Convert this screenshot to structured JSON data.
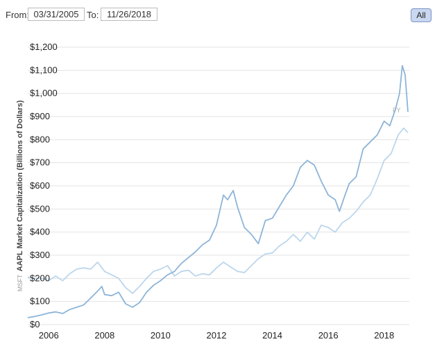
{
  "range_selector": {
    "from_label": "From:",
    "from_value": "03/31/2005",
    "to_label": "To:",
    "to_value": "11/26/2018",
    "all_button_label": "All"
  },
  "series_colors": {
    "aapl": "#8db4d8",
    "msft": "#bcd6ec"
  },
  "chart_data": {
    "type": "line",
    "ylabel": "AAPL Market Capitalization (Billions of Dollars)",
    "secondary_ylabel": "MSFT",
    "watermark": "FY",
    "xlim": [
      2005.25,
      2018.9
    ],
    "ylim": [
      0,
      1200
    ],
    "x_ticks": [
      2006,
      2008,
      2010,
      2012,
      2014,
      2016,
      2018
    ],
    "x_tick_labels": [
      "2006",
      "2008",
      "2010",
      "2012",
      "2014",
      "2016",
      "2018"
    ],
    "y_ticks": [
      0,
      100,
      200,
      300,
      400,
      500,
      600,
      700,
      800,
      900,
      1000,
      1100,
      1200
    ],
    "y_tick_labels": [
      "$0",
      "$100",
      "$200",
      "$300",
      "$400",
      "$500",
      "$600",
      "$700",
      "$800",
      "$900",
      "$1,000",
      "$1,100",
      "$1,200"
    ],
    "grid": true,
    "series": [
      {
        "points": [
          [
            2005.25,
            30
          ],
          [
            2005.5,
            35
          ],
          [
            2005.75,
            42
          ],
          [
            2006.0,
            50
          ],
          [
            2006.25,
            55
          ],
          [
            2006.5,
            48
          ],
          [
            2006.75,
            65
          ],
          [
            2007.0,
            75
          ],
          [
            2007.25,
            85
          ],
          [
            2007.5,
            115
          ],
          [
            2007.75,
            145
          ],
          [
            2007.9,
            165
          ],
          [
            2008.0,
            130
          ],
          [
            2008.25,
            125
          ],
          [
            2008.5,
            140
          ],
          [
            2008.75,
            90
          ],
          [
            2009.0,
            75
          ],
          [
            2009.25,
            95
          ],
          [
            2009.5,
            140
          ],
          [
            2009.75,
            170
          ],
          [
            2010.0,
            190
          ],
          [
            2010.25,
            215
          ],
          [
            2010.5,
            230
          ],
          [
            2010.75,
            265
          ],
          [
            2011.0,
            290
          ],
          [
            2011.25,
            315
          ],
          [
            2011.5,
            345
          ],
          [
            2011.75,
            365
          ],
          [
            2012.0,
            430
          ],
          [
            2012.25,
            560
          ],
          [
            2012.4,
            540
          ],
          [
            2012.6,
            580
          ],
          [
            2012.75,
            510
          ],
          [
            2013.0,
            420
          ],
          [
            2013.25,
            390
          ],
          [
            2013.5,
            350
          ],
          [
            2013.75,
            450
          ],
          [
            2014.0,
            460
          ],
          [
            2014.25,
            510
          ],
          [
            2014.5,
            560
          ],
          [
            2014.75,
            600
          ],
          [
            2015.0,
            680
          ],
          [
            2015.25,
            710
          ],
          [
            2015.5,
            690
          ],
          [
            2015.75,
            620
          ],
          [
            2016.0,
            560
          ],
          [
            2016.25,
            540
          ],
          [
            2016.4,
            490
          ],
          [
            2016.6,
            560
          ],
          [
            2016.75,
            610
          ],
          [
            2017.0,
            640
          ],
          [
            2017.25,
            760
          ],
          [
            2017.5,
            790
          ],
          [
            2017.75,
            820
          ],
          [
            2018.0,
            880
          ],
          [
            2018.2,
            860
          ],
          [
            2018.4,
            930
          ],
          [
            2018.55,
            1000
          ],
          [
            2018.65,
            1120
          ],
          [
            2018.75,
            1080
          ],
          [
            2018.85,
            920
          ]
        ]
      },
      {
        "points": [
          [
            2005.25,
            205
          ],
          [
            2005.5,
            200
          ],
          [
            2005.75,
            200
          ],
          [
            2006.0,
            190
          ],
          [
            2006.25,
            210
          ],
          [
            2006.5,
            190
          ],
          [
            2006.75,
            220
          ],
          [
            2007.0,
            240
          ],
          [
            2007.25,
            245
          ],
          [
            2007.5,
            240
          ],
          [
            2007.75,
            270
          ],
          [
            2008.0,
            230
          ],
          [
            2008.25,
            215
          ],
          [
            2008.5,
            200
          ],
          [
            2008.75,
            160
          ],
          [
            2009.0,
            135
          ],
          [
            2009.25,
            165
          ],
          [
            2009.5,
            200
          ],
          [
            2009.75,
            230
          ],
          [
            2010.0,
            240
          ],
          [
            2010.25,
            255
          ],
          [
            2010.5,
            210
          ],
          [
            2010.75,
            230
          ],
          [
            2011.0,
            235
          ],
          [
            2011.25,
            210
          ],
          [
            2011.5,
            220
          ],
          [
            2011.75,
            215
          ],
          [
            2012.0,
            245
          ],
          [
            2012.25,
            270
          ],
          [
            2012.5,
            250
          ],
          [
            2012.75,
            230
          ],
          [
            2013.0,
            225
          ],
          [
            2013.25,
            255
          ],
          [
            2013.5,
            285
          ],
          [
            2013.75,
            305
          ],
          [
            2014.0,
            310
          ],
          [
            2014.25,
            340
          ],
          [
            2014.5,
            360
          ],
          [
            2014.75,
            390
          ],
          [
            2015.0,
            360
          ],
          [
            2015.25,
            400
          ],
          [
            2015.5,
            370
          ],
          [
            2015.75,
            430
          ],
          [
            2016.0,
            420
          ],
          [
            2016.25,
            400
          ],
          [
            2016.5,
            440
          ],
          [
            2016.75,
            460
          ],
          [
            2017.0,
            490
          ],
          [
            2017.25,
            530
          ],
          [
            2017.5,
            560
          ],
          [
            2017.75,
            630
          ],
          [
            2018.0,
            710
          ],
          [
            2018.25,
            740
          ],
          [
            2018.5,
            820
          ],
          [
            2018.7,
            850
          ],
          [
            2018.85,
            830
          ]
        ]
      }
    ]
  }
}
